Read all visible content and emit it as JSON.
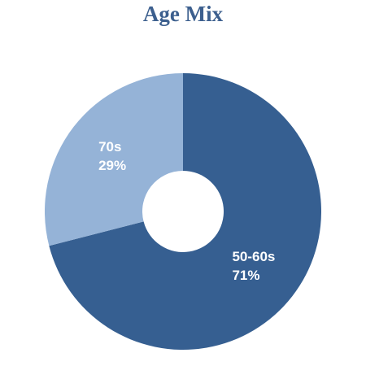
{
  "chart_data": {
    "type": "donut",
    "title": "Age Mix",
    "categories": [
      "50-60s",
      "70s"
    ],
    "values": [
      71,
      29
    ],
    "value_labels": [
      "71%",
      "29%"
    ],
    "colors": [
      "#365f91",
      "#95b3d7"
    ]
  }
}
